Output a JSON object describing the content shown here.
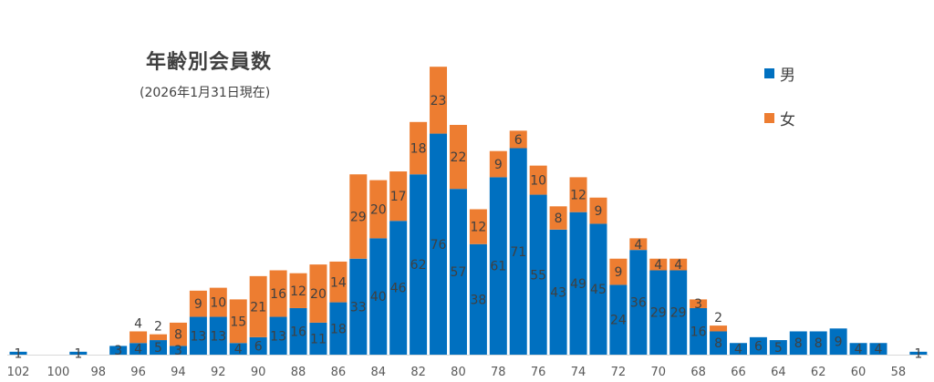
{
  "chart_data": {
    "type": "bar",
    "stacked": true,
    "title": "年齢別会員数",
    "subtitle": "(2026年1月31日現在)",
    "xlabel": "",
    "ylabel": "",
    "ylim": [
      0,
      100
    ],
    "grid": false,
    "legend_position": "top-right",
    "categories": [
      102,
      101,
      100,
      99,
      98,
      97,
      96,
      95,
      94,
      93,
      92,
      91,
      90,
      89,
      88,
      87,
      86,
      85,
      84,
      83,
      82,
      81,
      80,
      79,
      78,
      77,
      76,
      75,
      74,
      73,
      72,
      71,
      70,
      69,
      68,
      67,
      66,
      65,
      64,
      63,
      62,
      61,
      60,
      59,
      58,
      57
    ],
    "tick_labels": [
      "102",
      "100",
      "98",
      "96",
      "94",
      "92",
      "90",
      "88",
      "86",
      "84",
      "82",
      "80",
      "78",
      "76",
      "74",
      "72",
      "70",
      "68",
      "66",
      "64",
      "62",
      "60",
      "58"
    ],
    "series": [
      {
        "name": "男",
        "color": "#0070C0",
        "values": [
          1,
          0,
          0,
          1,
          0,
          3,
          4,
          5,
          3,
          13,
          13,
          4,
          6,
          13,
          16,
          11,
          18,
          33,
          40,
          46,
          62,
          76,
          57,
          38,
          61,
          71,
          55,
          43,
          49,
          45,
          24,
          36,
          29,
          29,
          16,
          8,
          4,
          6,
          5,
          8,
          8,
          9,
          4,
          4,
          0,
          1
        ]
      },
      {
        "name": "女",
        "color": "#ED7D31",
        "values": [
          0,
          0,
          0,
          0,
          0,
          0,
          4,
          2,
          8,
          9,
          10,
          15,
          21,
          16,
          12,
          20,
          14,
          29,
          20,
          17,
          18,
          23,
          22,
          12,
          9,
          6,
          10,
          8,
          12,
          9,
          9,
          4,
          4,
          4,
          3,
          2,
          0,
          0,
          0,
          0,
          0,
          0,
          0,
          0,
          0,
          0
        ]
      }
    ]
  }
}
